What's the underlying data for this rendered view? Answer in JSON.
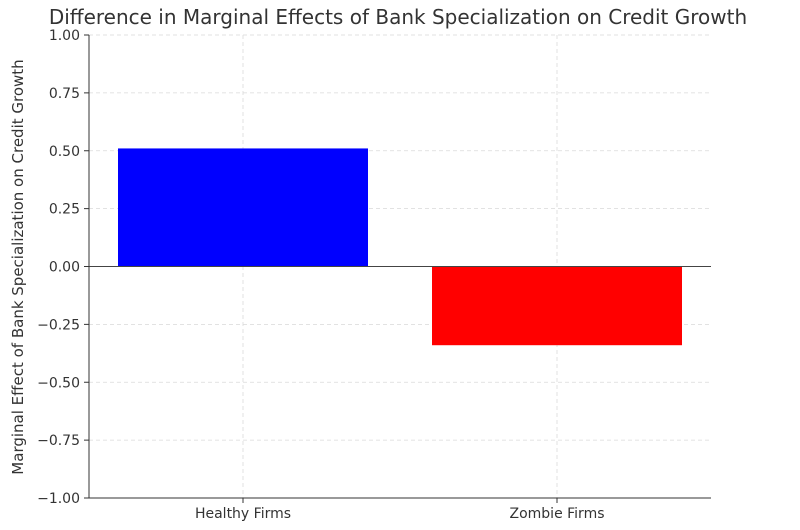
{
  "chart_data": {
    "type": "bar",
    "title": "Difference in Marginal Effects of Bank Specialization on Credit Growth",
    "xlabel": "",
    "ylabel": "Marginal Effect of Bank Specialization on Credit Growth",
    "categories": [
      "Healthy Firms",
      "Zombie Firms"
    ],
    "values": [
      0.51,
      -0.34
    ],
    "colors": [
      "#0000ff",
      "#ff0000"
    ],
    "ylim": [
      -1.0,
      1.0
    ],
    "yticks": [
      -1.0,
      -0.75,
      -0.5,
      -0.25,
      0.0,
      0.25,
      0.5,
      0.75,
      1.0
    ],
    "ytick_labels": [
      "−1.00",
      "−0.75",
      "−0.50",
      "−0.25",
      "0.00",
      "0.25",
      "0.50",
      "0.75",
      "1.00"
    ],
    "grid": true,
    "zero_line": true
  }
}
